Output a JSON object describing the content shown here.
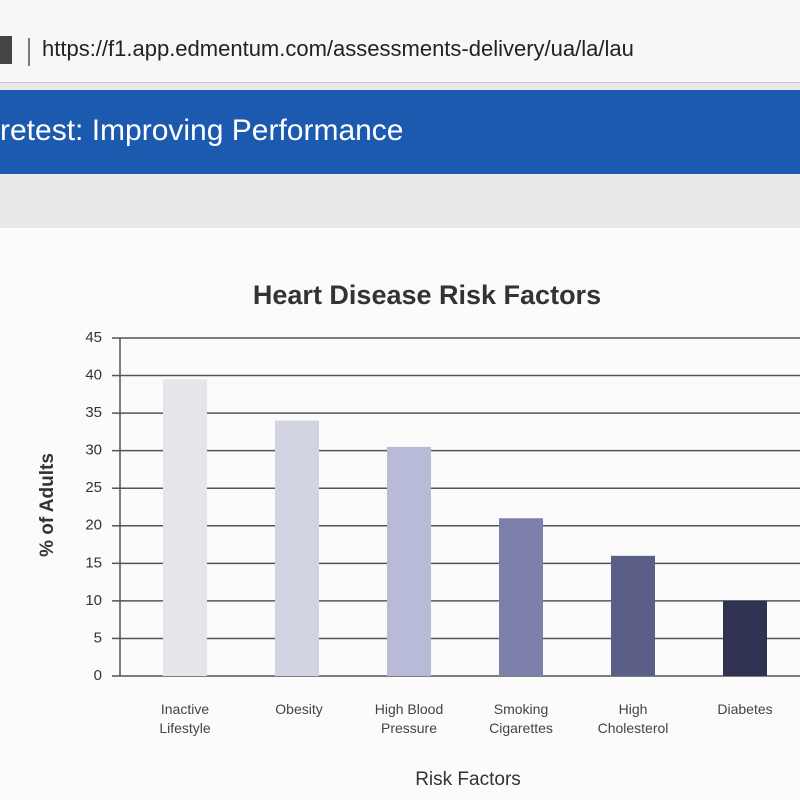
{
  "browser": {
    "url": "https://f1.app.edmentum.com/assessments-delivery/ua/la/lau"
  },
  "header": {
    "title": "retest: Improving Performance"
  },
  "chart_data": {
    "type": "bar",
    "title": "Heart Disease Risk Factors",
    "x_label": "Risk Factors",
    "y_label": "% of Adults",
    "categories": [
      "Inactive Lifestyle",
      "Obesity",
      "High Blood Pressure",
      "Smoking Cigarettes",
      "High Cholesterol",
      "Diabetes"
    ],
    "values": [
      39.5,
      34,
      30.5,
      21,
      16,
      10
    ],
    "colors": [
      "#e6e6ea",
      "#d2d4e2",
      "#b7bbd7",
      "#7c80aa",
      "#5b5f88",
      "#2f3251"
    ],
    "ylim": [
      0,
      45
    ],
    "yticks": [
      0,
      5,
      10,
      15,
      20,
      25,
      30,
      35,
      40,
      45
    ],
    "grid": true
  }
}
